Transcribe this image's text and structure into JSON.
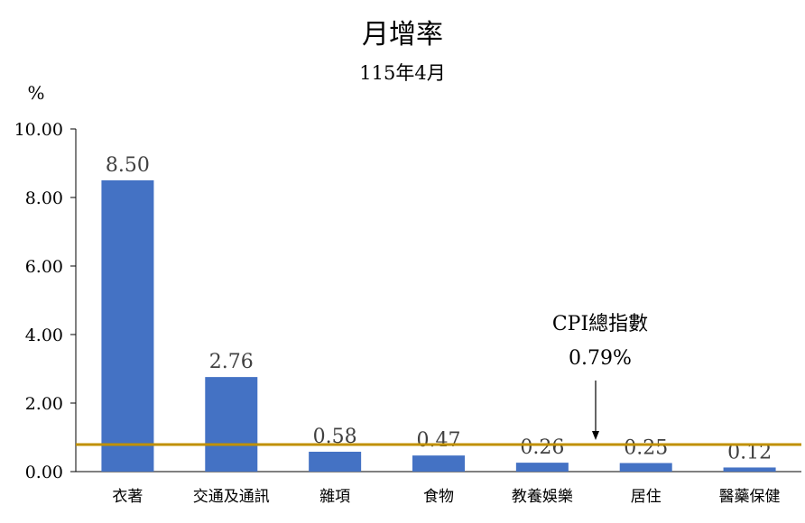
{
  "chart_data": {
    "type": "bar",
    "title": "月增率",
    "subtitle": "115年4月",
    "yunit": "%",
    "categories": [
      "衣著",
      "交通及通訊",
      "雜項",
      "食物",
      "教養娛樂",
      "居住",
      "醫藥保健"
    ],
    "values": [
      8.5,
      2.76,
      0.58,
      0.47,
      0.26,
      0.25,
      0.12
    ],
    "data_labels": [
      "8.50",
      "2.76",
      "0.58",
      "0.47",
      "0.26",
      "0.25",
      "0.12"
    ],
    "ylim": [
      0,
      10
    ],
    "yticks": [
      0,
      2,
      4,
      6,
      8,
      10
    ],
    "ytick_labels": [
      "0.00",
      "2.00",
      "4.00",
      "6.00",
      "8.00",
      "10.00"
    ],
    "reference_line": {
      "value": 0.79,
      "label_line1": "CPI總指數",
      "label_line2": "0.79%"
    },
    "bar_color": "#4472C4",
    "reference_color": "#C09000",
    "grid": false,
    "legend": "none"
  }
}
